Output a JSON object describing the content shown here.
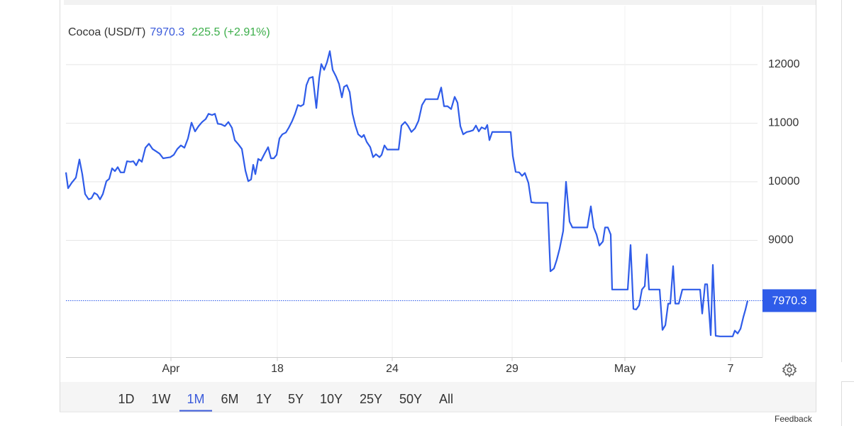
{
  "chart_data": {
    "type": "line",
    "title": "Cocoa (USD/T)",
    "price": 7970.3,
    "change": "225.5",
    "change_percent": "(+2.91%)",
    "xlim": [
      0,
      982
    ],
    "xticks": [
      {
        "value": 148,
        "label": "Apr"
      },
      {
        "value": 298,
        "label": "18"
      },
      {
        "value": 460,
        "label": "24"
      },
      {
        "value": 629,
        "label": "29"
      },
      {
        "value": 788,
        "label": "May"
      },
      {
        "value": 937,
        "label": "7"
      }
    ],
    "ylim": [
      7000,
      13000
    ],
    "yticks": [
      9000,
      10000,
      11000,
      12000
    ],
    "grid": true,
    "x": [
      0,
      3,
      8,
      14,
      19,
      23,
      27,
      32,
      36,
      40,
      44,
      48,
      52,
      57,
      61,
      65,
      69,
      73,
      77,
      82,
      86,
      91,
      95,
      99,
      103,
      107,
      112,
      117,
      122,
      127,
      132,
      137,
      142,
      147,
      152,
      157,
      162,
      167,
      172,
      177,
      182,
      187,
      192,
      197,
      201,
      206,
      210,
      214,
      219,
      224,
      229,
      234,
      238,
      243,
      248,
      253,
      257,
      261,
      264,
      267,
      271,
      275,
      280,
      285,
      289,
      293,
      297,
      301,
      305,
      310,
      314,
      319,
      323,
      327,
      331,
      335,
      339,
      343,
      348,
      353,
      357,
      360,
      364,
      368,
      372,
      376,
      381,
      385,
      389,
      392,
      396,
      400,
      404,
      408,
      412,
      417,
      420,
      424,
      429,
      433,
      437,
      442,
      445,
      449,
      453,
      458,
      463,
      469,
      473,
      478,
      482,
      487,
      492,
      497,
      502,
      507,
      513,
      519,
      524,
      529,
      533,
      538,
      543,
      548,
      552,
      556,
      560,
      565,
      569,
      574,
      578,
      582,
      586,
      591,
      594,
      597,
      601,
      607,
      617,
      627,
      630,
      634,
      639,
      643,
      647,
      652,
      656,
      662,
      672,
      679,
      683,
      688,
      692,
      696,
      701,
      705,
      710,
      714,
      722,
      729,
      735,
      740,
      744,
      748,
      752,
      757,
      760,
      764,
      768,
      770,
      777,
      787,
      792,
      796,
      800,
      804,
      808,
      812,
      816,
      819,
      822,
      827,
      837,
      841,
      845,
      849,
      852,
      856,
      859,
      864,
      869,
      877,
      887,
      894,
      897,
      901,
      904,
      909,
      912,
      916,
      922,
      932,
      940,
      943,
      947,
      951,
      955,
      958,
      961
    ],
    "series": [
      {
        "name": "Cocoa (USD/T)",
        "color": "#2f5ce9",
        "values": [
          10160,
          9890,
          9980,
          10070,
          10380,
          10130,
          9790,
          9700,
          9720,
          9810,
          9780,
          9700,
          9790,
          10010,
          10050,
          10230,
          10180,
          10250,
          10160,
          10160,
          10350,
          10340,
          10350,
          10280,
          10380,
          10340,
          10580,
          10650,
          10560,
          10520,
          10480,
          10400,
          10410,
          10420,
          10460,
          10560,
          10620,
          10580,
          10740,
          11010,
          10860,
          10950,
          11020,
          11070,
          11160,
          11140,
          11160,
          10990,
          10980,
          10950,
          11020,
          10920,
          10710,
          10640,
          10560,
          10190,
          10010,
          10040,
          10290,
          10130,
          10390,
          10360,
          10480,
          10590,
          10400,
          10400,
          10460,
          10740,
          10810,
          10840,
          10920,
          11040,
          11160,
          11310,
          11290,
          11320,
          11650,
          11770,
          11790,
          11260,
          11770,
          12010,
          11910,
          12040,
          12230,
          11910,
          11790,
          11670,
          11440,
          11620,
          11650,
          11530,
          11160,
          10960,
          10810,
          10760,
          10800,
          10680,
          10590,
          10420,
          10470,
          10420,
          10460,
          10620,
          10550,
          10550,
          10550,
          10550,
          10960,
          11020,
          10960,
          10850,
          10910,
          11040,
          11310,
          11410,
          11410,
          11410,
          11410,
          11610,
          11290,
          11290,
          11240,
          11450,
          11350,
          10950,
          10810,
          10850,
          10860,
          10880,
          10960,
          10860,
          10930,
          10900,
          10970,
          10710,
          10850,
          10850,
          10850,
          10850,
          10440,
          10170,
          10160,
          10100,
          10150,
          9980,
          9650,
          9640,
          9640,
          9640,
          8470,
          8520,
          8670,
          8860,
          9160,
          10000,
          9320,
          9220,
          9220,
          9220,
          9220,
          9580,
          9220,
          9100,
          8910,
          8980,
          9220,
          9220,
          9100,
          8160,
          8160,
          8160,
          8160,
          8920,
          7830,
          7820,
          7890,
          8160,
          8220,
          8760,
          8160,
          8160,
          8160,
          7470,
          7550,
          7920,
          7920,
          8560,
          7920,
          7920,
          8160,
          8160,
          8160,
          8160,
          7750,
          8250,
          8250,
          7380,
          8580,
          7370,
          7360,
          7360,
          7360,
          7460,
          7410,
          7490,
          7690,
          7820,
          7970.3
        ]
      }
    ]
  },
  "ranges": [
    "1D",
    "1W",
    "1M",
    "6M",
    "1Y",
    "5Y",
    "10Y",
    "25Y",
    "50Y",
    "All"
  ],
  "selected_range": "1M",
  "feedback": "Feedback"
}
